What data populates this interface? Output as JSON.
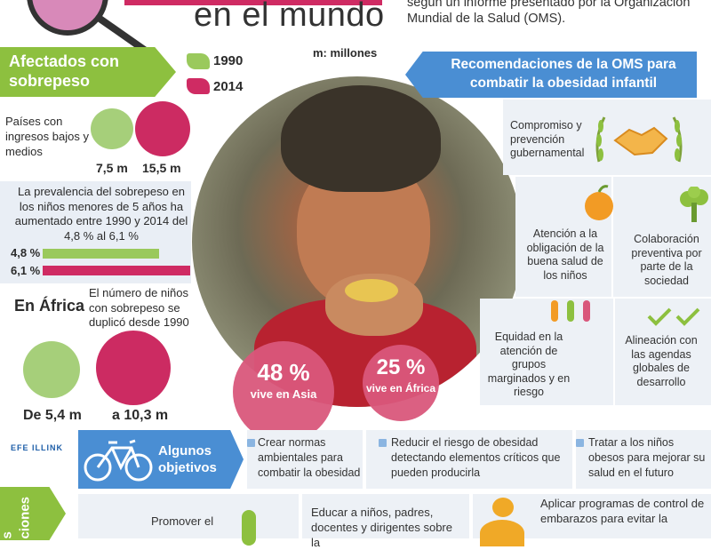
{
  "header": {
    "title_line": "en el mundo",
    "intro_text": "según un informe presentado por la Organización Mundial de la Salud (OMS).",
    "units_note": "m: millones"
  },
  "legend": [
    {
      "label": "1990",
      "color": "#9ac95c"
    },
    {
      "label": "2014",
      "color": "#cf2b63"
    }
  ],
  "afectados": {
    "title": "Afectados con sobrepeso",
    "paises_text": "Países con ingresos bajos y medios",
    "paises_values": {
      "v1990": "7,5 m",
      "v2014": "15,5 m"
    },
    "prevalencia_text": "La prevalencia del sobrepeso en los niños menores de 5 años ha aumentado entre 1990 y 2014 del 4,8 % al 6,1 %",
    "prevalencia_values": {
      "v1990": "4,8 %",
      "v2014": "6,1 %",
      "f1990": 0.048,
      "f2014": 0.061
    },
    "africa_label": "En África",
    "africa_text": "El número de niños con sobrepeso se duplicó desde 1990",
    "africa_values": {
      "v1990": "De 5,4 m",
      "v2014": "a 10,3 m"
    }
  },
  "stats": {
    "asia": {
      "pct": "48 %",
      "label": "vive en Asia"
    },
    "africa": {
      "pct": "25 %",
      "label": "vive en África"
    }
  },
  "recomendaciones": {
    "title": "Recomendaciones de la OMS para combatir la obesidad infantil",
    "items": [
      {
        "text": "Compromiso y prevención gubernamental",
        "icon": "handshake-icon"
      },
      {
        "text": "Atención a la obligación de la buena salud de los niños",
        "icon": "fruit-icon"
      },
      {
        "text": "Colaboración preventiva por parte de la sociedad",
        "icon": "broccoli-icon"
      },
      {
        "text": "Equidad en la atención de grupos marginados y en riesgo",
        "icon": "people-icon"
      },
      {
        "text": "Alineación con las agendas globales de desarrollo",
        "icon": "checkmark-icon"
      }
    ]
  },
  "objetivos": {
    "logo": "EFE ILLINK",
    "title": "Algunos objetivos",
    "items": [
      "Crear normas ambientales para combatir la obesidad",
      "Reducir el riesgo de obesidad detectando elementos críticos que pueden producirla",
      "Tratar a los niños obesos para mejorar su salud en el futuro"
    ]
  },
  "acciones": {
    "label_a": "s",
    "label_b": "ciones",
    "items": [
      "Promover el",
      "Educar a niños, padres, docentes y dirigentes sobre la",
      "Aplicar programas de control de embarazos para evitar la"
    ]
  },
  "colors": {
    "green": "#8dc03f",
    "magenta": "#cf2b63",
    "blue": "#4a8ed3"
  }
}
